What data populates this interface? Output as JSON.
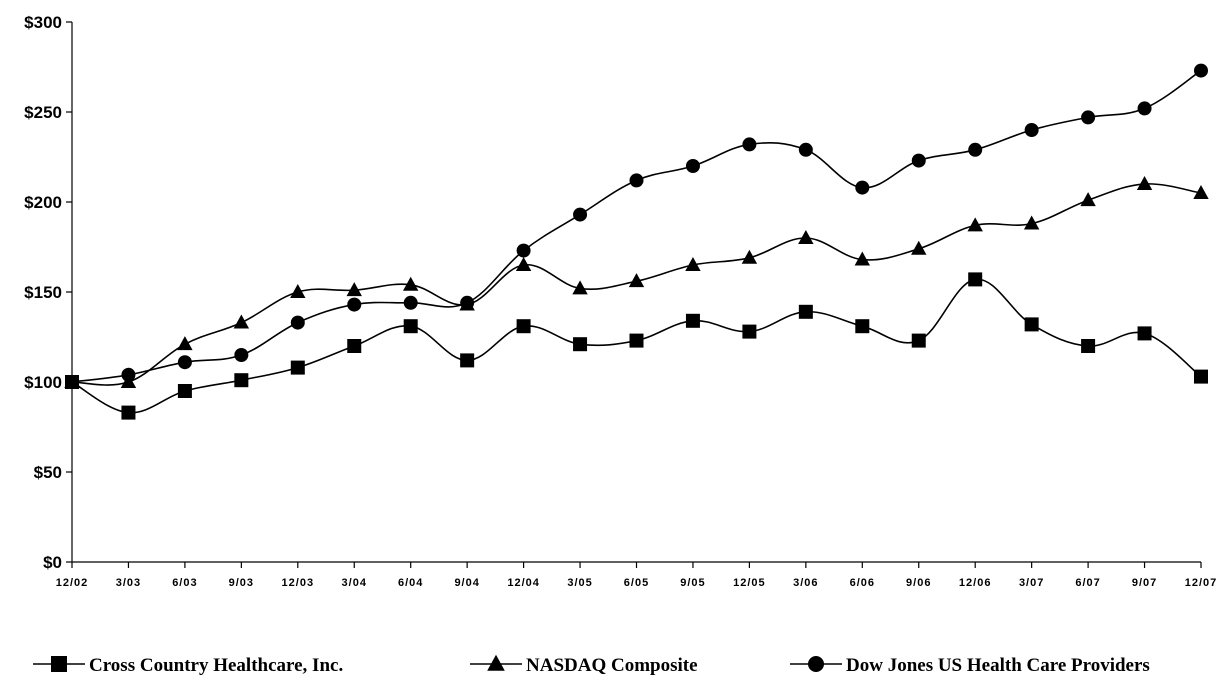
{
  "chart_data": {
    "type": "line",
    "title": "",
    "xlabel": "",
    "ylabel": "",
    "categories": [
      "12/02",
      "3/03",
      "6/03",
      "9/03",
      "12/03",
      "3/04",
      "6/04",
      "9/04",
      "12/04",
      "3/05",
      "6/05",
      "9/05",
      "12/05",
      "3/06",
      "6/06",
      "9/06",
      "12/06",
      "3/07",
      "6/07",
      "9/07",
      "12/07"
    ],
    "y_ticks": [
      "$0",
      "$50",
      "$100",
      "$150",
      "$200",
      "$250",
      "$300"
    ],
    "y_tick_values": [
      0,
      50,
      100,
      150,
      200,
      250,
      300
    ],
    "ylim": [
      0,
      300
    ],
    "grid": false,
    "legend_position": "bottom",
    "series": [
      {
        "name": "Cross Country Healthcare, Inc.",
        "marker": "square",
        "values": [
          100,
          83,
          95,
          101,
          108,
          120,
          131,
          112,
          131,
          121,
          123,
          134,
          128,
          139,
          131,
          123,
          157,
          132,
          120,
          127,
          103
        ]
      },
      {
        "name": "NASDAQ Composite",
        "marker": "triangle",
        "values": [
          100,
          100,
          121,
          133,
          150,
          151,
          154,
          143,
          165,
          152,
          156,
          165,
          169,
          180,
          168,
          174,
          187,
          188,
          201,
          210,
          205
        ]
      },
      {
        "name": "Dow Jones US Health Care Providers",
        "marker": "circle",
        "values": [
          100,
          104,
          111,
          115,
          133,
          143,
          144,
          144,
          173,
          193,
          212,
          220,
          232,
          229,
          208,
          223,
          229,
          240,
          247,
          252,
          273
        ]
      }
    ]
  }
}
